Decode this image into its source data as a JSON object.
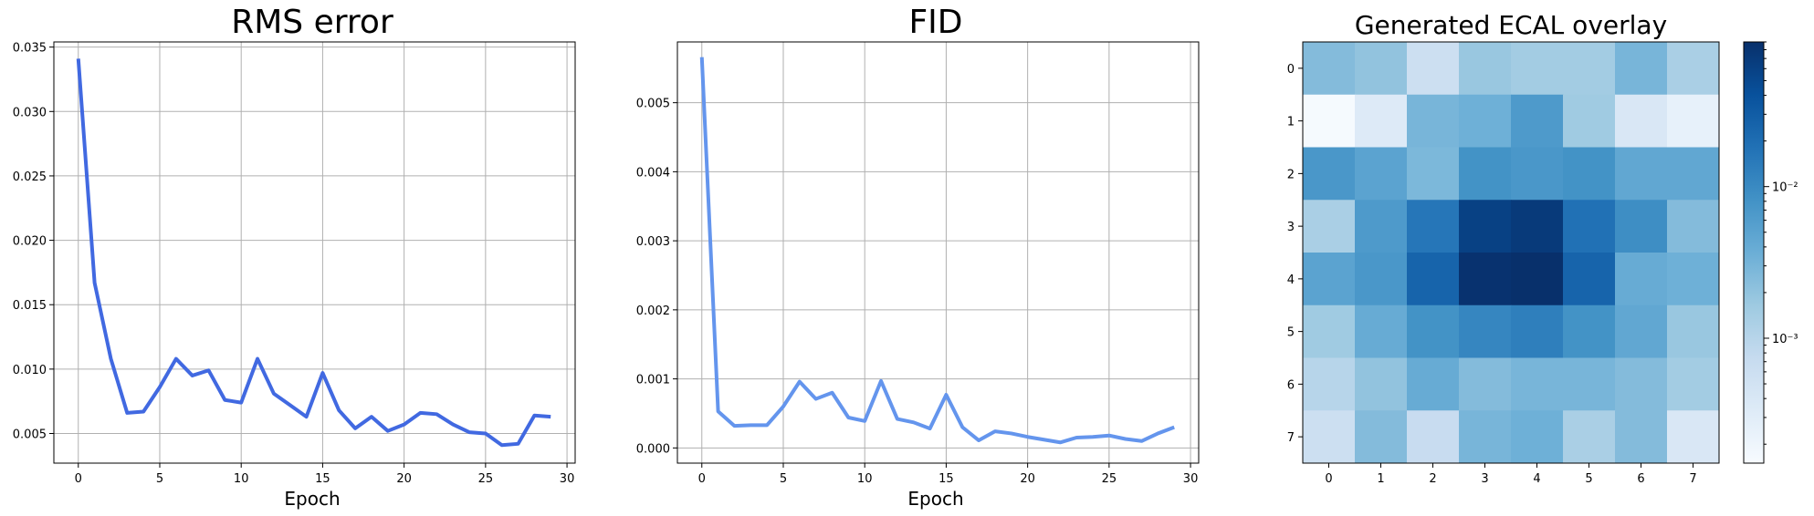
{
  "chart_data": [
    {
      "type": "line",
      "title": "RMS error",
      "xlabel": "Epoch",
      "ylabel": "",
      "xlim": [
        -1.5,
        30.5
      ],
      "ylim": [
        0.0027,
        0.0354
      ],
      "xticks": [
        0,
        5,
        10,
        15,
        20,
        25,
        30
      ],
      "yticks": [
        0.005,
        0.01,
        0.015,
        0.02,
        0.025,
        0.03,
        0.035
      ],
      "ytick_labels": [
        "0.005",
        "0.010",
        "0.015",
        "0.020",
        "0.025",
        "0.030",
        "0.035"
      ],
      "grid": true,
      "color": "#4169e1",
      "x": [
        0,
        1,
        2,
        3,
        4,
        5,
        6,
        7,
        8,
        9,
        10,
        11,
        12,
        13,
        14,
        15,
        16,
        17,
        18,
        19,
        20,
        21,
        22,
        23,
        24,
        25,
        26,
        27,
        28,
        29
      ],
      "values": [
        0.0341,
        0.0167,
        0.0108,
        0.0066,
        0.0067,
        0.0086,
        0.0108,
        0.0095,
        0.0099,
        0.0076,
        0.0074,
        0.0108,
        0.0081,
        0.0072,
        0.0063,
        0.0097,
        0.0068,
        0.0054,
        0.0063,
        0.0052,
        0.0057,
        0.0066,
        0.0065,
        0.0057,
        0.0051,
        0.005,
        0.0041,
        0.0042,
        0.0064,
        0.0063
      ]
    },
    {
      "type": "line",
      "title": "FID",
      "xlabel": "Epoch",
      "ylabel": "",
      "xlim": [
        -1.5,
        30.5
      ],
      "ylim": [
        -0.00022,
        0.00588
      ],
      "xticks": [
        0,
        5,
        10,
        15,
        20,
        25,
        30
      ],
      "yticks": [
        0.0,
        0.001,
        0.002,
        0.003,
        0.004,
        0.005
      ],
      "ytick_labels": [
        "0.000",
        "0.001",
        "0.002",
        "0.003",
        "0.004",
        "0.005"
      ],
      "grid": true,
      "color": "#6495ed",
      "x": [
        0,
        1,
        2,
        3,
        4,
        5,
        6,
        7,
        8,
        9,
        10,
        11,
        12,
        13,
        14,
        15,
        16,
        17,
        18,
        19,
        20,
        21,
        22,
        23,
        24,
        25,
        26,
        27,
        28,
        29
      ],
      "values": [
        0.00566,
        0.00053,
        0.00032,
        0.00033,
        0.00033,
        0.0006,
        0.00096,
        0.00071,
        0.0008,
        0.00044,
        0.00039,
        0.00097,
        0.00042,
        0.00037,
        0.00028,
        0.00077,
        0.0003,
        0.00011,
        0.00024,
        0.00021,
        0.00016,
        0.00012,
        8e-05,
        0.00015,
        0.00016,
        0.00018,
        0.00013,
        0.0001,
        0.00021,
        0.0003
      ]
    },
    {
      "type": "heatmap",
      "title": "Generated ECAL overlay",
      "xticks": [
        "0",
        "1",
        "2",
        "3",
        "4",
        "5",
        "6",
        "7"
      ],
      "yticks": [
        "0",
        "1",
        "2",
        "3",
        "4",
        "5",
        "6",
        "7"
      ],
      "colormap": "Blues",
      "color_scale": "log",
      "colorbar_range": [
        0.00015,
        0.09
      ],
      "colorbar_ticks": [
        0.001,
        0.01
      ],
      "colorbar_tick_labels": [
        "10⁻³",
        "10⁻²"
      ],
      "values": [
        [
          0.0025,
          0.002,
          0.0006,
          0.0018,
          0.0015,
          0.0015,
          0.003,
          0.0013
        ],
        [
          0.00016,
          0.00035,
          0.003,
          0.0035,
          0.0065,
          0.0016,
          0.0004,
          0.00025
        ],
        [
          0.007,
          0.005,
          0.0028,
          0.008,
          0.007,
          0.008,
          0.0045,
          0.0045
        ],
        [
          0.0013,
          0.0065,
          0.016,
          0.06,
          0.07,
          0.018,
          0.009,
          0.0025
        ],
        [
          0.005,
          0.007,
          0.025,
          0.085,
          0.09,
          0.025,
          0.004,
          0.0035
        ],
        [
          0.0016,
          0.004,
          0.008,
          0.011,
          0.013,
          0.008,
          0.0045,
          0.0018
        ],
        [
          0.001,
          0.002,
          0.004,
          0.0025,
          0.003,
          0.003,
          0.0025,
          0.0015
        ],
        [
          0.0006,
          0.0025,
          0.0007,
          0.003,
          0.0035,
          0.0013,
          0.0025,
          0.0004
        ]
      ]
    }
  ]
}
